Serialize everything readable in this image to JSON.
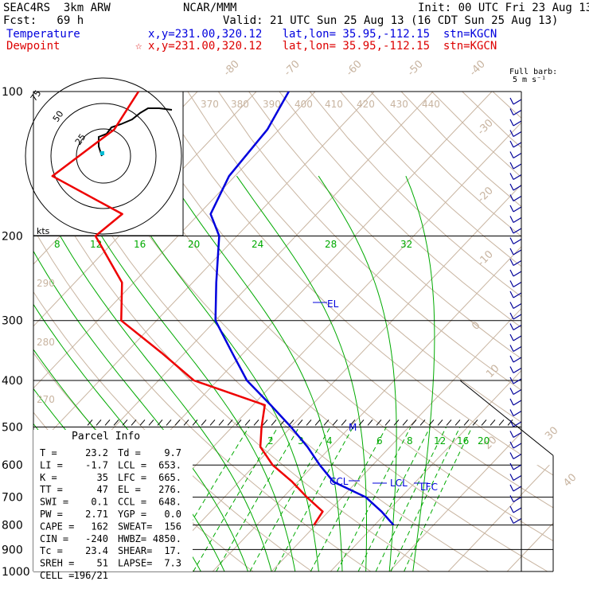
{
  "header": {
    "project": "SEAC4RS  3km ARW",
    "fcst": "Fcst:   69 h",
    "org": "NCAR/MMM",
    "init": "Init: 00 UTC Fri 23 Aug 13",
    "valid": "Valid: 21 UTC Sun 25 Aug 13 (16 CDT Sun 25 Aug 13)",
    "temperature_label": "Temperature",
    "dewpoint_label": "Dewpoint",
    "temp_location": "x,y=231.00,320.12   lat,lon= 35.95,-112.15  stn=KGCN",
    "dew_location": "x,y=231.00,320.12   lat,lon= 35.95,-112.15  stn=KGCN",
    "star": "☆",
    "full_barb": "Full barb:",
    "barb_units": "5 m s⁻¹"
  },
  "colors": {
    "temperature": "#0000dd",
    "dewpoint": "#ee0000",
    "isotherm": "#c8b4a0",
    "dry_adiabat": "#c8b4a0",
    "moist_adiabat": "#00aa00",
    "mixing_ratio": "#00aa00",
    "isobar": "#000000"
  },
  "chart_data": {
    "type": "skew-t",
    "pressure_levels": [
      100,
      200,
      300,
      400,
      500,
      600,
      700,
      800,
      900,
      1000
    ],
    "pressure_labels": [
      "100",
      "200",
      "300",
      "400",
      "500",
      "600",
      "700",
      "800",
      "900",
      "1000"
    ],
    "isotherm_labels": [
      "-80",
      "-70",
      "-60",
      "-50",
      "-40",
      "-30",
      "-20",
      "-10",
      "0",
      "10",
      "20",
      "30",
      "40"
    ],
    "theta_labels": [
      "370",
      "380",
      "390",
      "400",
      "410",
      "420",
      "430",
      "440",
      "290",
      "280",
      "270"
    ],
    "mixing_ratio_upper_labels": [
      "8",
      "12",
      "16",
      "20",
      "24",
      "28",
      "32"
    ],
    "mixing_ratio_lower_labels": [
      "2",
      "3",
      "4",
      "6",
      "8",
      "12",
      "16",
      "20",
      "24"
    ],
    "temperature_profile": [
      [
        100,
        -64.5
      ],
      [
        120,
        -62
      ],
      [
        150,
        -61
      ],
      [
        180,
        -58
      ],
      [
        200,
        -53
      ],
      [
        250,
        -46
      ],
      [
        300,
        -40
      ],
      [
        350,
        -32
      ],
      [
        400,
        -25
      ],
      [
        450,
        -17
      ],
      [
        500,
        -10
      ],
      [
        550,
        -4
      ],
      [
        600,
        1
      ],
      [
        650,
        6
      ],
      [
        700,
        14
      ],
      [
        750,
        19
      ],
      [
        800,
        23.2
      ]
    ],
    "dewpoint_profile": [
      [
        100,
        -90
      ],
      [
        120,
        -88
      ],
      [
        150,
        -91
      ],
      [
        180,
        -73
      ],
      [
        200,
        -74
      ],
      [
        250,
        -62
      ],
      [
        300,
        -56
      ],
      [
        350,
        -44
      ],
      [
        400,
        -34
      ],
      [
        450,
        -18
      ],
      [
        500,
        -15
      ],
      [
        550,
        -12
      ],
      [
        600,
        -7
      ],
      [
        650,
        -1
      ],
      [
        700,
        4
      ],
      [
        750,
        9
      ],
      [
        800,
        9.7
      ]
    ],
    "annotations": [
      "EL",
      "LFC",
      "LCL",
      "CCL",
      "M"
    ],
    "hodograph_rings": [
      "25",
      "50",
      "75"
    ],
    "hodograph_units": "kts",
    "parcel_info": {
      "title": "Parcel Info",
      "rows": [
        [
          "T  =",
          "23.2",
          "Td =",
          "9.7"
        ],
        [
          "LI =",
          "-1.7",
          "LCL =",
          "653."
        ],
        [
          "K  =",
          "35",
          "LFC =",
          "665."
        ],
        [
          "TT =",
          "47",
          "EL =",
          "276."
        ],
        [
          "SWI =",
          "0.1",
          "CCL =",
          "648."
        ],
        [
          "PW =",
          "2.71",
          "YGP =",
          "0.0"
        ],
        [
          "CAPE =",
          "162",
          "SWEAT=",
          "156"
        ],
        [
          "CIN =",
          "-240",
          "HWBZ=",
          "4850."
        ],
        [
          "Tc =",
          "23.4",
          "SHEAR=",
          "17."
        ],
        [
          "SREH =",
          "51",
          "LAPSE=",
          "7.3"
        ],
        [
          "CELL =",
          "196/21",
          "",
          ""
        ]
      ]
    }
  }
}
